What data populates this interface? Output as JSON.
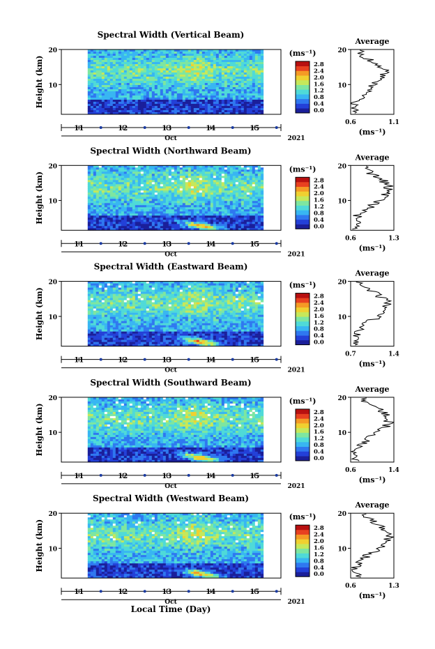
{
  "panels": [
    {
      "title": "Spectral Width (Vertical Beam)",
      "avg_xticks": [
        "0.6",
        "1.1"
      ],
      "avg_xrange": [
        0.6,
        1.1
      ]
    },
    {
      "title": "Spectral Width (Northward Beam)",
      "avg_xticks": [
        "0.6",
        "1.3"
      ],
      "avg_xrange": [
        0.6,
        1.3
      ]
    },
    {
      "title": "Spectral Width (Eastward Beam)",
      "avg_xticks": [
        "0.7",
        "1.4"
      ],
      "avg_xrange": [
        0.7,
        1.4
      ]
    },
    {
      "title": "Spectral Width (Southward Beam)",
      "avg_xticks": [
        "0.6",
        "1.4"
      ],
      "avg_xrange": [
        0.6,
        1.4
      ]
    },
    {
      "title": "Spectral Width (Westward Beam)",
      "avg_xticks": [
        "0.6",
        "1.3"
      ],
      "avg_xrange": [
        0.6,
        1.3
      ]
    }
  ],
  "labels": {
    "ylabel": "Height (km)",
    "yticks": [
      "20",
      "10"
    ],
    "xticks": [
      "11",
      "12",
      "13",
      "14",
      "15"
    ],
    "month": "Oct",
    "year": "2021",
    "cbar_unit": "(ms⁻¹)",
    "cbar_ticks": [
      "2.8",
      "2.4",
      "2.0",
      "1.6",
      "1.2",
      "0.8",
      "0.4",
      "0.0"
    ],
    "avg_title": "Average",
    "avg_unit": "(ms⁻¹)",
    "avg_yticks": [
      "20",
      "10"
    ],
    "xlabel": "Local Time (Day)"
  },
  "chart_data": {
    "type": "heatmap",
    "x_range_days": [
      10.6,
      15.6
    ],
    "data_start_day": 11.2,
    "data_end_day": 15.2,
    "y_range_km": [
      1.5,
      20
    ],
    "color_range_ms": [
      0.0,
      3.0
    ],
    "colors": [
      "#1b1f9a",
      "#2340d8",
      "#2f78f0",
      "#38b6f2",
      "#4fdad8",
      "#7ee6a0",
      "#c6e85a",
      "#f0d030",
      "#f59a25",
      "#e84020",
      "#b81010"
    ],
    "averages": [
      {
        "beam": "Vertical",
        "height_km": [
          2,
          4,
          6,
          8,
          10,
          12,
          14,
          16,
          18,
          20
        ],
        "width_ms": [
          0.65,
          0.62,
          0.7,
          0.8,
          0.85,
          0.98,
          1.02,
          0.9,
          0.75,
          0.7
        ]
      },
      {
        "beam": "Northward",
        "height_km": [
          2,
          4,
          6,
          8,
          10,
          12,
          14,
          16,
          18,
          20
        ],
        "width_ms": [
          0.7,
          0.68,
          0.72,
          0.9,
          1.05,
          1.2,
          1.22,
          1.1,
          0.9,
          0.8
        ]
      },
      {
        "beam": "Eastward",
        "height_km": [
          2,
          4,
          6,
          8,
          10,
          12,
          14,
          16,
          18,
          20
        ],
        "width_ms": [
          0.8,
          0.78,
          0.82,
          0.95,
          1.15,
          1.28,
          1.3,
          1.15,
          1.0,
          0.85
        ]
      },
      {
        "beam": "Southward",
        "height_km": [
          2,
          4,
          6,
          8,
          10,
          12,
          14,
          16,
          18,
          20
        ],
        "width_ms": [
          0.7,
          0.68,
          0.75,
          0.9,
          1.1,
          1.28,
          1.32,
          1.2,
          0.95,
          0.8
        ]
      },
      {
        "beam": "Westward",
        "height_km": [
          2,
          4,
          6,
          8,
          10,
          12,
          14,
          16,
          18,
          20
        ],
        "width_ms": [
          0.7,
          0.66,
          0.72,
          0.88,
          1.05,
          1.2,
          1.22,
          1.1,
          0.92,
          0.8
        ]
      }
    ]
  }
}
